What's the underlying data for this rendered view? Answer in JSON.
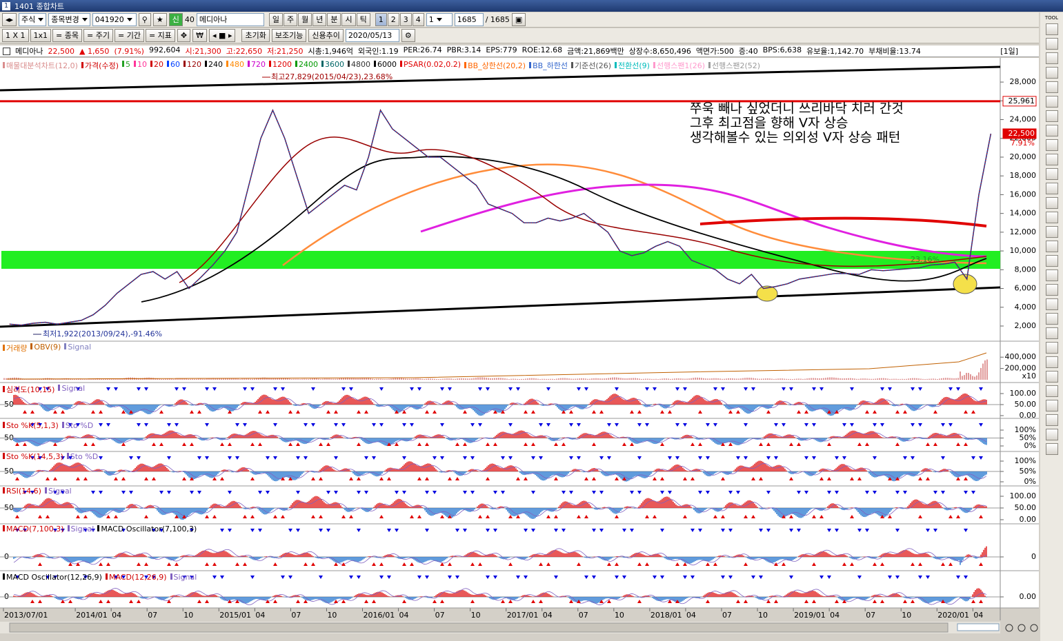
{
  "window": {
    "number": "1",
    "title": "1401 종합차트"
  },
  "toolbar": {
    "market": "주식",
    "action": "종목변경",
    "code": "041920",
    "new_tab": "신",
    "group": "40",
    "stock": "메디아나",
    "periods": [
      "일",
      "주",
      "월",
      "년",
      "분",
      "시",
      "틱"
    ],
    "counts": [
      "1",
      "2",
      "3",
      "4"
    ],
    "unit": "1",
    "bars": "1685",
    "bars_total": "/ 1685",
    "layout": [
      "1 X 1",
      "1x1",
      "= 종목",
      "= 주기",
      "= 기간",
      "= 지표"
    ],
    "buttons": [
      "초기화",
      "보조기능",
      "신용추이"
    ],
    "date": "2020/05/13"
  },
  "info": {
    "name": "메디아나",
    "price": "22,500",
    "change": "▲ 1,650",
    "rate": "(7.91%)",
    "fields": [
      "992,604",
      "시:21,300",
      "고:22,650",
      "저:21,250",
      "시총:1,946억",
      "외국인:1.19",
      "PER:26.74",
      "PBR:3.14",
      "EPS:779",
      "ROE:12.68",
      "금액:21,869백만",
      "상장수:8,650,496",
      "액면가:500",
      "증:40",
      "BPS:6,638",
      "유보율:1,142.70",
      "부채비율:13.74"
    ],
    "period": "[1일]"
  },
  "chart_data": {
    "type": "line",
    "legend": [
      {
        "name": "매물대분석차트(12,0)",
        "color": "#d98c8c"
      },
      {
        "name": "5",
        "color": "#22a022"
      },
      {
        "name": "10",
        "color": "#ff3399"
      },
      {
        "name": "20",
        "color": "#d00000"
      },
      {
        "name": "60",
        "color": "#0040ff"
      },
      {
        "name": "120",
        "color": "#990000"
      },
      {
        "name": "240",
        "color": "#000000"
      },
      {
        "name": "480",
        "color": "#ff8800"
      },
      {
        "name": "720",
        "color": "#cc00cc"
      },
      {
        "name": "1200",
        "color": "#e00000"
      },
      {
        "name": "2400",
        "color": "#009900"
      },
      {
        "name": "3600",
        "color": "#006666"
      },
      {
        "name": "4800",
        "color": "#333333"
      },
      {
        "name": "6000",
        "color": "#000000"
      },
      {
        "name": "PSAR(0.02,0.2)",
        "color": "#e00000"
      },
      {
        "name": "BB_상한선(20,2)",
        "color": "#ff6600"
      },
      {
        "name": "BB_하한선",
        "color": "#3366cc"
      },
      {
        "name": "기준선(26)",
        "color": "#555555"
      },
      {
        "name": "전환선(9)",
        "color": "#00bbbb"
      },
      {
        "name": "선행스팬1(26)",
        "color": "#ff99cc"
      },
      {
        "name": "선행스팬2(52)",
        "color": "#999999"
      }
    ],
    "x": [
      "2013/07",
      "2013/08",
      "2013/09",
      "2013/10",
      "2013/11",
      "2013/12",
      "2014/01",
      "2014/02",
      "2014/03",
      "2014/04",
      "2014/05",
      "2014/06",
      "2014/07",
      "2014/08",
      "2014/09",
      "2014/10",
      "2014/11",
      "2014/12",
      "2015/01",
      "2015/02",
      "2015/03",
      "2015/04",
      "2015/05",
      "2015/06",
      "2015/07",
      "2015/08",
      "2015/09",
      "2015/10",
      "2015/11",
      "2015/12",
      "2016/01",
      "2016/02",
      "2016/03",
      "2016/04",
      "2016/05",
      "2016/06",
      "2016/07",
      "2016/08",
      "2016/09",
      "2016/10",
      "2016/11",
      "2016/12",
      "2017/01",
      "2017/02",
      "2017/03",
      "2017/04",
      "2017/05",
      "2017/06",
      "2017/07",
      "2017/08",
      "2017/09",
      "2017/10",
      "2017/11",
      "2017/12",
      "2018/01",
      "2018/02",
      "2018/03",
      "2018/04",
      "2018/05",
      "2018/06",
      "2018/07",
      "2018/08",
      "2018/09",
      "2018/10",
      "2018/11",
      "2018/12",
      "2019/01",
      "2019/02",
      "2019/03",
      "2019/04",
      "2019/05",
      "2019/06",
      "2019/07",
      "2019/08",
      "2019/09",
      "2019/10",
      "2019/11",
      "2019/12",
      "2020/01",
      "2020/02",
      "2020/03",
      "2020/04",
      "2020/05"
    ],
    "series": [
      {
        "name": "가격(수정)",
        "color": "#d00000",
        "values": [
          2200,
          2100,
          2300,
          2400,
          2200,
          2400,
          2600,
          3200,
          4200,
          5500,
          6500,
          7500,
          7800,
          7000,
          7800,
          6000,
          7200,
          8500,
          10000,
          12000,
          17000,
          22000,
          25000,
          22000,
          18000,
          14000,
          15000,
          16000,
          17000,
          16500,
          20000,
          25000,
          23000,
          22000,
          21000,
          20000,
          20000,
          19000,
          18000,
          17000,
          15000,
          14500,
          14000,
          13000,
          13000,
          13500,
          13200,
          13500,
          14000,
          13000,
          12000,
          10000,
          9500,
          9800,
          10500,
          11000,
          10500,
          9000,
          8500,
          8000,
          7000,
          6500,
          7500,
          6000,
          6200,
          6500,
          7000,
          7200,
          7400,
          7600,
          7600,
          7500,
          8000,
          7900,
          8000,
          8100,
          8200,
          8500,
          8600,
          8800,
          7000,
          16000,
          22500
        ]
      }
    ],
    "ylim": [
      530,
      30430
    ],
    "yticks": [
      {
        "value": 2000,
        "label": "2,000"
      },
      {
        "value": 4000,
        "label": "4,000"
      },
      {
        "value": 6000,
        "label": "6,000"
      },
      {
        "value": 8000,
        "label": "8,000"
      },
      {
        "value": 10000,
        "label": "10,000"
      },
      {
        "value": 12000,
        "label": "12,000"
      },
      {
        "value": 14000,
        "label": "14,000"
      },
      {
        "value": 16000,
        "label": "16,000"
      },
      {
        "value": 18000,
        "label": "18,000"
      },
      {
        "value": 20000,
        "label": "20,000"
      },
      {
        "value": 22000,
        "label": "22,000"
      },
      {
        "value": 24000,
        "label": "24,000"
      },
      {
        "value": 26000,
        "label": "26,000"
      },
      {
        "value": 28000,
        "label": "28,000"
      }
    ],
    "xticks": [
      {
        "value": "2013/07",
        "label": "2013/07/01"
      },
      {
        "value": "2014/01",
        "label": "2014/01"
      },
      {
        "value": "2014/04",
        "label": "04"
      },
      {
        "value": "2014/07",
        "label": "07"
      },
      {
        "value": "2014/10",
        "label": "10"
      },
      {
        "value": "2015/01",
        "label": "2015/01"
      },
      {
        "value": "2015/04",
        "label": "04"
      },
      {
        "value": "2015/07",
        "label": "07"
      },
      {
        "value": "2015/10",
        "label": "10"
      },
      {
        "value": "2016/01",
        "label": "2016/01"
      },
      {
        "value": "2016/04",
        "label": "04"
      },
      {
        "value": "2016/07",
        "label": "07"
      },
      {
        "value": "2016/10",
        "label": "10"
      },
      {
        "value": "2017/01",
        "label": "2017/01"
      },
      {
        "value": "2017/04",
        "label": "04"
      },
      {
        "value": "2017/07",
        "label": "07"
      },
      {
        "value": "2017/10",
        "label": "10"
      },
      {
        "value": "2018/01",
        "label": "2018/01"
      },
      {
        "value": "2018/04",
        "label": "04"
      },
      {
        "value": "2018/07",
        "label": "07"
      },
      {
        "value": "2018/10",
        "label": "10"
      },
      {
        "value": "2019/01",
        "label": "2019/01"
      },
      {
        "value": "2019/04",
        "label": "04"
      },
      {
        "value": "2019/07",
        "label": "07"
      },
      {
        "value": "2019/10",
        "label": "10"
      },
      {
        "value": "2020/01",
        "label": "2020/01"
      },
      {
        "value": "2020/04",
        "label": "04"
      }
    ],
    "price_marks": [
      {
        "value": 25961,
        "label": "25,961"
      },
      {
        "value": 22500,
        "label": "22,500"
      }
    ],
    "current_rate": "7.91%",
    "annotations": {
      "high": "최고27,829(2015/04/23),23.68%",
      "low": "최저1,922(2013/09/24),-91.46%",
      "band_rate": "23.16%",
      "note": [
        "쭈욱 빼나 싶었더니 쓰리바닥 치러 간것",
        "그후 최고점을 향해 V자 상승",
        "생각해볼수 있는 의외성 V자 상승 패턴"
      ]
    }
  },
  "indicators": [
    {
      "labels": [
        {
          "text": "거래량",
          "color": "#e07000"
        },
        {
          "text": "OBV(9)",
          "color": "#c06000"
        },
        {
          "text": "Signal",
          "color": "#8080c0"
        }
      ],
      "ylim": [
        0,
        500000
      ],
      "yticks": [
        {
          "value": 400000,
          "label": "400,000"
        },
        {
          "value": 200000,
          "label": "200,000"
        }
      ],
      "unit": "x10"
    },
    {
      "labels": [
        {
          "text": "심리도(10,15)",
          "color": "#d00000"
        },
        {
          "text": "Signal",
          "color": "#8060c0"
        }
      ],
      "ylim": [
        0,
        100
      ],
      "yticks": [
        {
          "value": 100,
          "label": "100.00"
        },
        {
          "value": 50,
          "label": "50.00"
        },
        {
          "value": 0,
          "label": "0.00"
        }
      ],
      "mid_label": "50"
    },
    {
      "labels": [
        {
          "text": "Sto %K(5,1,3)",
          "color": "#d00000"
        },
        {
          "text": "Sto %D",
          "color": "#8060c0"
        }
      ],
      "ylim": [
        0,
        100
      ],
      "yticks": [
        {
          "value": 100,
          "label": "100%"
        },
        {
          "value": 50,
          "label": "50%"
        },
        {
          "value": 0,
          "label": "0%"
        }
      ],
      "mid_label": "50"
    },
    {
      "labels": [
        {
          "text": "Sto %K(14,5,3)",
          "color": "#d00000"
        },
        {
          "text": "Sto %D",
          "color": "#8060c0"
        }
      ],
      "ylim": [
        0,
        100
      ],
      "yticks": [
        {
          "value": 100,
          "label": "100%"
        },
        {
          "value": 50,
          "label": "50%"
        },
        {
          "value": 0,
          "label": "0%"
        }
      ],
      "mid_label": "50"
    },
    {
      "labels": [
        {
          "text": "RSI(14,6)",
          "color": "#d00000"
        },
        {
          "text": "Signal",
          "color": "#8060c0"
        }
      ],
      "ylim": [
        0,
        100
      ],
      "yticks": [
        {
          "value": 100,
          "label": "100.00"
        },
        {
          "value": 50,
          "label": "50.00"
        },
        {
          "value": 0,
          "label": "0.00"
        }
      ],
      "mid_label": "50"
    },
    {
      "labels": [
        {
          "text": "MACD(7,100,3)",
          "color": "#d00000"
        },
        {
          "text": "Signal",
          "color": "#8060c0"
        },
        {
          "text": "MACD Oscillator(7,100,3)",
          "color": "#000000"
        }
      ],
      "yticks": [
        0
      ],
      "mid_label": "0"
    },
    {
      "labels": [
        {
          "text": "MACD Oscillator(12,26,9)",
          "color": "#000000"
        },
        {
          "text": "MACD(12,26,9)",
          "color": "#d00000"
        },
        {
          "text": "Signal",
          "color": "#8060c0"
        }
      ],
      "yticks": [
        {
          "value": 0,
          "label": "0.00"
        }
      ],
      "mid_label": "0"
    }
  ],
  "right_toolbar": {
    "label": "TOOL"
  }
}
